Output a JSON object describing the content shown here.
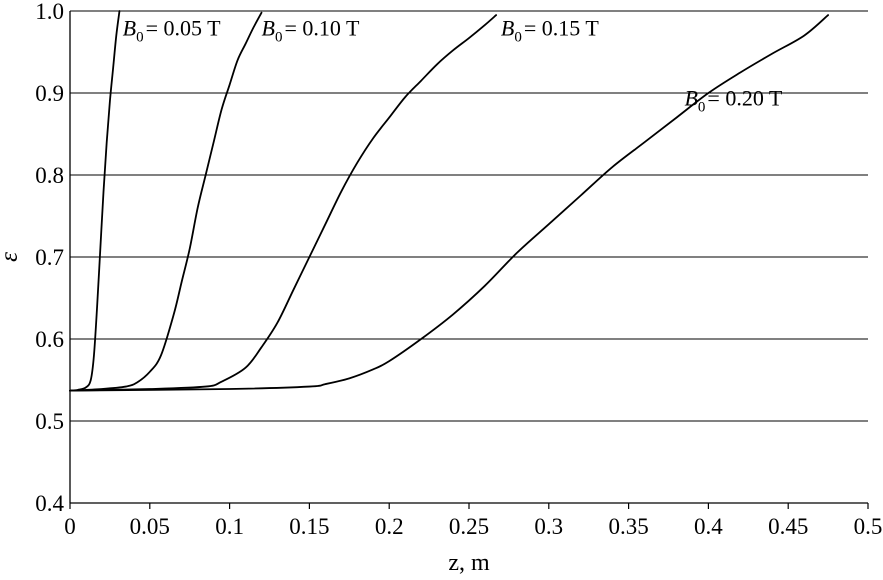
{
  "chart_data": {
    "type": "line",
    "title": "",
    "xlabel": "z, m",
    "ylabel": "ε",
    "xlim": [
      0,
      0.5
    ],
    "ylim": [
      0.4,
      1.0
    ],
    "xticks": [
      0,
      0.05,
      0.1,
      0.15,
      0.2,
      0.25,
      0.3,
      0.35,
      0.4,
      0.45,
      0.5
    ],
    "xtick_labels": [
      "0",
      "0.05",
      "0.1",
      "0.15",
      "0.2",
      "0.25",
      "0.3",
      "0.35",
      "0.4",
      "0.45",
      "0.5"
    ],
    "yticks": [
      0.4,
      0.5,
      0.6,
      0.7,
      0.8,
      0.9,
      1.0
    ],
    "ytick_labels": [
      "0.4",
      "0.5",
      "0.6",
      "0.7",
      "0.8",
      "0.9",
      "1.0"
    ],
    "grid": "horizontal",
    "legend": "none",
    "series": [
      {
        "symbol": "B",
        "subscript": "0",
        "value_text": "= 0.05 T",
        "label_anchor": [
          0.033,
          0.97
        ],
        "x": [
          0,
          0.005,
          0.01,
          0.013,
          0.015,
          0.017,
          0.019,
          0.021,
          0.023,
          0.025,
          0.027,
          0.029,
          0.031
        ],
        "y": [
          0.537,
          0.538,
          0.541,
          0.55,
          0.58,
          0.64,
          0.71,
          0.78,
          0.84,
          0.89,
          0.93,
          0.97,
          1.0
        ]
      },
      {
        "symbol": "B",
        "subscript": "0",
        "value_text": "= 0.10 T",
        "label_anchor": [
          0.12,
          0.97
        ],
        "x": [
          0,
          0.02,
          0.035,
          0.042,
          0.05,
          0.057,
          0.065,
          0.07,
          0.075,
          0.08,
          0.085,
          0.09,
          0.095,
          0.1,
          0.105,
          0.11,
          0.115,
          0.12
        ],
        "y": [
          0.537,
          0.539,
          0.542,
          0.547,
          0.56,
          0.58,
          0.63,
          0.67,
          0.71,
          0.76,
          0.8,
          0.84,
          0.88,
          0.91,
          0.94,
          0.96,
          0.98,
          0.998
        ]
      },
      {
        "symbol": "B",
        "subscript": "0",
        "value_text": "= 0.15 T",
        "label_anchor": [
          0.27,
          0.97
        ],
        "x": [
          0,
          0.05,
          0.085,
          0.095,
          0.11,
          0.12,
          0.13,
          0.14,
          0.15,
          0.16,
          0.17,
          0.18,
          0.19,
          0.2,
          0.21,
          0.22,
          0.23,
          0.24,
          0.25,
          0.26,
          0.267
        ],
        "y": [
          0.537,
          0.539,
          0.542,
          0.548,
          0.565,
          0.59,
          0.62,
          0.66,
          0.7,
          0.74,
          0.78,
          0.815,
          0.845,
          0.87,
          0.895,
          0.915,
          0.935,
          0.952,
          0.967,
          0.983,
          0.995
        ]
      },
      {
        "symbol": "B",
        "subscript": "0",
        "value_text": "= 0.20 T",
        "label_anchor": [
          0.385,
          0.885
        ],
        "x": [
          0,
          0.1,
          0.15,
          0.16,
          0.175,
          0.19,
          0.2,
          0.22,
          0.24,
          0.26,
          0.28,
          0.3,
          0.32,
          0.34,
          0.36,
          0.38,
          0.4,
          0.42,
          0.44,
          0.46,
          0.475
        ],
        "y": [
          0.537,
          0.539,
          0.542,
          0.545,
          0.552,
          0.563,
          0.573,
          0.6,
          0.63,
          0.665,
          0.705,
          0.74,
          0.775,
          0.81,
          0.84,
          0.87,
          0.9,
          0.925,
          0.948,
          0.97,
          0.995
        ]
      }
    ]
  }
}
